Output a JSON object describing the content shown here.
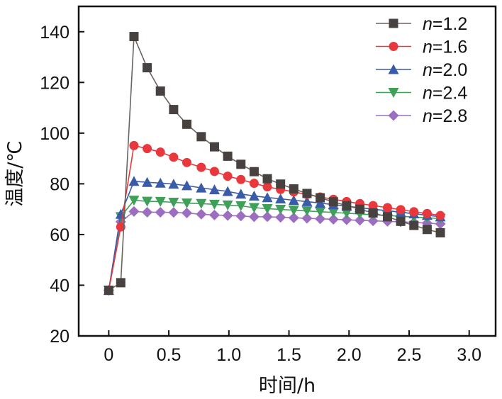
{
  "chart_data": {
    "type": "line",
    "title": "",
    "xlabel": "时间/h",
    "ylabel": "温度/℃",
    "xlim": [
      -0.25,
      3.22
    ],
    "ylim": [
      20,
      150
    ],
    "xticks": [
      0,
      0.5,
      1.0,
      1.5,
      2.0,
      2.5,
      3.0
    ],
    "xtick_labels": [
      "0",
      "0.5",
      "1.0",
      "1.5",
      "2.0",
      "2.5",
      "3.0"
    ],
    "yticks": [
      20,
      40,
      60,
      80,
      100,
      120,
      140
    ],
    "ytick_labels": [
      "20",
      "40",
      "60",
      "80",
      "100",
      "120",
      "140"
    ],
    "grid": false,
    "legend_position": "top-right",
    "x": [
      0,
      0.1,
      0.21,
      0.32,
      0.43,
      0.54,
      0.65,
      0.77,
      0.88,
      0.99,
      1.1,
      1.21,
      1.32,
      1.43,
      1.54,
      1.65,
      1.76,
      1.87,
      1.98,
      2.09,
      2.2,
      2.32,
      2.43,
      2.54,
      2.65,
      2.76
    ],
    "series": [
      {
        "name": "n=1.2",
        "prefix": "n",
        "suffix": "=1.2",
        "marker": "square",
        "color": "#474140",
        "line_color": "#6b6360",
        "values": [
          38,
          41,
          138.1,
          125.8,
          116.6,
          109.3,
          103.5,
          98.6,
          94.6,
          90.9,
          87.7,
          84.8,
          82.0,
          79.9,
          78,
          76.2,
          74.5,
          72.9,
          71.4,
          70,
          68.5,
          67,
          65.2,
          63.6,
          62,
          60.7
        ]
      },
      {
        "name": "n=1.6",
        "prefix": "n",
        "suffix": "=1.6",
        "marker": "circle",
        "color": "#e8383d",
        "line_color": "#e8383d",
        "values": [
          38,
          63,
          95.1,
          93.9,
          92.5,
          90.5,
          88.4,
          86.5,
          84.9,
          83.0,
          81.7,
          80.2,
          78.8,
          77.8,
          76.8,
          75.8,
          74.8,
          73.9,
          73,
          72.2,
          71.4,
          70.6,
          69.8,
          69,
          68.3,
          67.5
        ]
      },
      {
        "name": "n=2.0",
        "prefix": "n",
        "suffix": "=2.0",
        "marker": "triangle-up",
        "color": "#3a5ca8",
        "line_color": "#3a5ca8",
        "values": [
          38,
          68,
          81.0,
          80.6,
          80.3,
          79.9,
          79.3,
          78.4,
          77.7,
          77.0,
          76.0,
          75.2,
          74.6,
          74.1,
          73.5,
          73,
          72.4,
          71.8,
          71.2,
          70.6,
          70,
          69.4,
          68.8,
          68.2,
          67.6,
          67.0
        ]
      },
      {
        "name": "n=2.4",
        "prefix": "n",
        "suffix": "=2.4",
        "marker": "triangle-down",
        "color": "#3fa05a",
        "line_color": "#3fa05a",
        "values": [
          38,
          67,
          73.5,
          73.1,
          73.0,
          72.7,
          72.4,
          72.2,
          71.9,
          71.6,
          71.3,
          70.6,
          70.2,
          69.9,
          69.6,
          69.3,
          69,
          68.7,
          68.4,
          68.1,
          67.8,
          67.5,
          67.2,
          66.9,
          66.6,
          66.3
        ]
      },
      {
        "name": "n=2.8",
        "prefix": "n",
        "suffix": "=2.8",
        "marker": "diamond",
        "color": "#9b6ec0",
        "line_color": "#9b6ec0",
        "values": [
          38,
          65,
          69.1,
          68.8,
          68.8,
          68.7,
          68.5,
          68.0,
          67.7,
          67.5,
          67.3,
          67.0,
          67.0,
          66.8,
          66.6,
          66.4,
          66.2,
          66,
          65.8,
          65.6,
          65.4,
          65.2,
          65,
          64.8,
          64.5,
          64.2
        ]
      }
    ]
  }
}
